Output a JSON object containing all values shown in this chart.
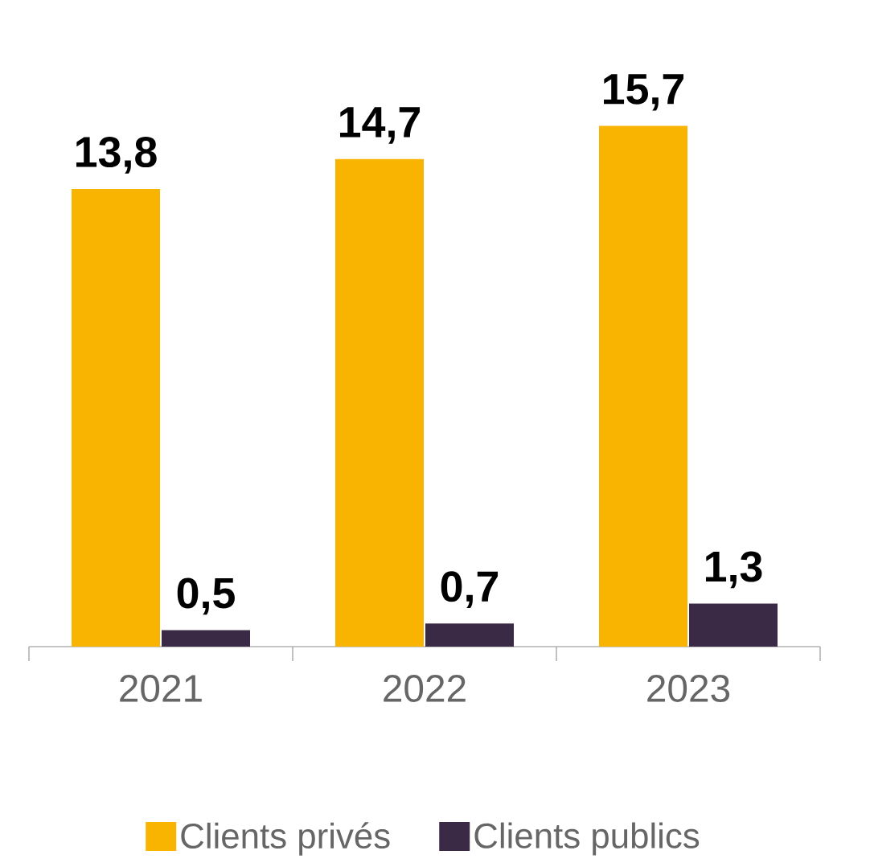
{
  "chart_data": {
    "type": "bar",
    "categories": [
      "2021",
      "2022",
      "2023"
    ],
    "series": [
      {
        "name": "Clients privés",
        "color": "#f8b400",
        "values": [
          13.8,
          14.7,
          15.7
        ],
        "value_labels": [
          "13,8",
          "14,7",
          "15,7"
        ]
      },
      {
        "name": "Clients publics",
        "color": "#3b2a45",
        "values": [
          0.5,
          0.7,
          1.3
        ],
        "value_labels": [
          "0,5",
          "0,7",
          "1,3"
        ]
      }
    ],
    "legend": "bottom"
  }
}
